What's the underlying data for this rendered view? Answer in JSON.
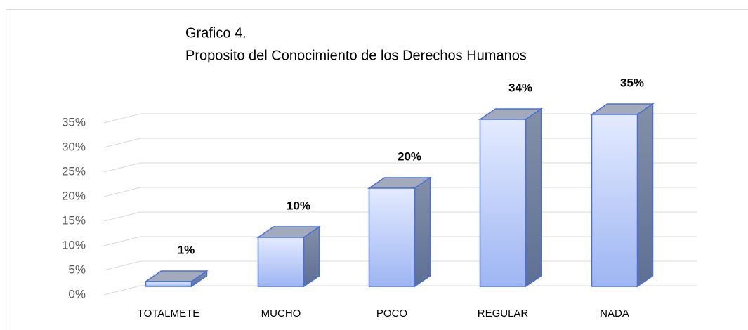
{
  "chart_data": {
    "type": "bar3d",
    "title": "Grafico 4.",
    "subtitle": "Proposito del Conocimiento de los Derechos Humanos",
    "categories": [
      "TOTALMETE",
      "MUCHO",
      "POCO",
      "REGULAR",
      "NADA"
    ],
    "values": [
      1,
      10,
      20,
      34,
      35
    ],
    "value_labels": [
      "1%",
      "10%",
      "20%",
      "34%",
      "35%"
    ],
    "color": "#4a6fd8",
    "ylim": [
      0,
      35
    ],
    "yticks": [
      {
        "value": 0,
        "label": "0%"
      },
      {
        "value": 5,
        "label": "5%"
      },
      {
        "value": 10,
        "label": "10%"
      },
      {
        "value": 15,
        "label": "15%"
      },
      {
        "value": 20,
        "label": "20%"
      },
      {
        "value": 25,
        "label": "25%"
      },
      {
        "value": 30,
        "label": "30%"
      },
      {
        "value": 35,
        "label": "35%"
      }
    ],
    "grid": true
  }
}
